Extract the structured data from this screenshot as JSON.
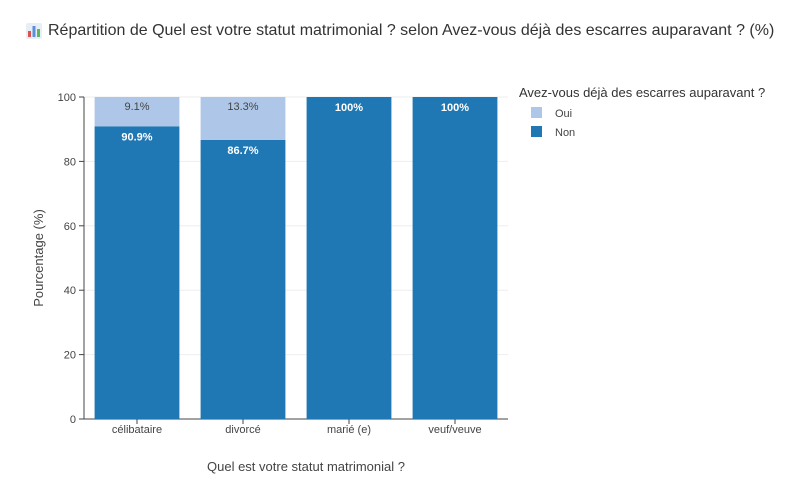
{
  "title": {
    "icon": "bar-chart-icon",
    "text": "Répartition de Quel est votre statut matrimonial ? selon Avez-vous déjà des escarres auparavant ? (%)"
  },
  "chart_data": {
    "type": "bar",
    "stacked": true,
    "title": "Répartition de Quel est votre statut matrimonial ? selon Avez-vous déjà des escarres auparavant ? (%)",
    "xlabel": "Quel est votre statut matrimonial ?",
    "ylabel": "Pourcentage (%)",
    "ylim": [
      0,
      100
    ],
    "yticks": [
      0,
      20,
      40,
      60,
      80,
      100
    ],
    "grid": true,
    "legend_title": "Avez-vous déjà des escarres auparavant ?",
    "legend_position": "top-right",
    "categories": [
      "célibataire",
      "divorcé",
      "marié (e)",
      "veuf/veuve"
    ],
    "series": [
      {
        "name": "Non",
        "color": "#1f77b4",
        "values": [
          90.9,
          86.7,
          100,
          100
        ],
        "labels": [
          "90.9%",
          "86.7%",
          "100%",
          "100%"
        ]
      },
      {
        "name": "Oui",
        "color": "#aec7e8",
        "values": [
          9.1,
          13.3,
          0,
          0
        ],
        "labels": [
          "9.1%",
          "13.3%",
          "",
          ""
        ]
      }
    ],
    "legend_order": [
      "Oui",
      "Non"
    ]
  }
}
